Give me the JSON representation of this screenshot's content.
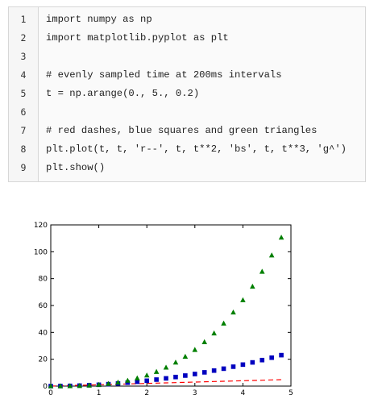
{
  "code": {
    "lines": [
      {
        "number": "1",
        "text": "import numpy as np"
      },
      {
        "number": "2",
        "text": "import matplotlib.pyplot as plt"
      },
      {
        "number": "3",
        "text": ""
      },
      {
        "number": "4",
        "text": "# evenly sampled time at 200ms intervals"
      },
      {
        "number": "5",
        "text": "t = np.arange(0., 5., 0.2)"
      },
      {
        "number": "6",
        "text": ""
      },
      {
        "number": "7",
        "text": "# red dashes, blue squares and green triangles"
      },
      {
        "number": "8",
        "text": "plt.plot(t, t, 'r--', t, t**2, 'bs', t, t**3, 'g^')"
      },
      {
        "number": "9",
        "text": "plt.show()"
      }
    ]
  },
  "chart_data": {
    "type": "line",
    "title": "",
    "xlabel": "",
    "ylabel": "",
    "xlim": [
      0,
      5
    ],
    "ylim": [
      0,
      120
    ],
    "xticks": [
      0,
      1,
      2,
      3,
      4,
      5
    ],
    "yticks": [
      0,
      20,
      40,
      60,
      80,
      100,
      120
    ],
    "grid": false,
    "x": [
      0,
      0.2,
      0.4,
      0.6,
      0.8,
      1.0,
      1.2,
      1.4,
      1.6,
      1.8,
      2.0,
      2.2,
      2.4,
      2.6,
      2.8,
      3.0,
      3.2,
      3.4,
      3.6,
      3.8,
      4.0,
      4.2,
      4.4,
      4.6,
      4.8
    ],
    "series": [
      {
        "style": "dashed-line",
        "color": "#ff0000",
        "values": [
          0,
          0.2,
          0.4,
          0.6,
          0.8,
          1.0,
          1.2,
          1.4,
          1.6,
          1.8,
          2.0,
          2.2,
          2.4,
          2.6,
          2.8,
          3.0,
          3.2,
          3.4,
          3.6,
          3.8,
          4.0,
          4.2,
          4.4,
          4.6,
          4.8
        ]
      },
      {
        "style": "square-markers",
        "color": "#0000bf",
        "values": [
          0,
          0.04,
          0.16,
          0.36,
          0.64,
          1.0,
          1.44,
          1.96,
          2.56,
          3.24,
          4.0,
          4.84,
          5.76,
          6.76,
          7.84,
          9.0,
          10.24,
          11.56,
          12.96,
          14.44,
          16.0,
          17.64,
          19.36,
          21.16,
          23.04
        ]
      },
      {
        "style": "triangle-markers",
        "color": "#007f00",
        "values": [
          0,
          0.008,
          0.064,
          0.216,
          0.512,
          1.0,
          1.728,
          2.744,
          4.096,
          5.832,
          8.0,
          10.648,
          13.824,
          17.576,
          21.952,
          27.0,
          32.768,
          39.304,
          46.656,
          54.872,
          64.0,
          74.088,
          85.184,
          97.336,
          110.592
        ]
      }
    ]
  }
}
